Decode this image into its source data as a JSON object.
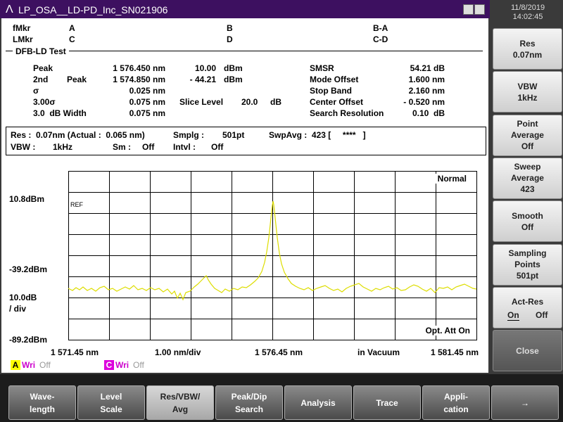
{
  "window": {
    "title": "LP_OSA__LD-PD_Inc_SN021906",
    "date": "11/8/2019",
    "time": "14:02:45"
  },
  "markers": {
    "rows": [
      [
        "fMkr",
        "A",
        "B",
        "B-A"
      ],
      [
        "LMkr",
        "C",
        "D",
        "C-D"
      ]
    ]
  },
  "test": {
    "title": "DFB-LD Test",
    "rows": [
      [
        "Peak",
        "1 576.450 nm",
        "10.00",
        "dBm",
        "SMSR",
        "54.21 dB"
      ],
      [
        "2nd",
        "Peak",
        "1 574.850 nm",
        "- 44.21",
        "dBm",
        "Mode Offset",
        "1.600 nm"
      ],
      [
        "σ",
        "0.025 nm",
        "Stop Band",
        "2.160 nm"
      ],
      [
        "3.00σ",
        "0.075 nm",
        "Slice Level",
        "20.0",
        "dB",
        "Center Offset",
        "- 0.520 nm"
      ],
      [
        "3.0  dB Width",
        "0.075 nm",
        "Search Resolution",
        "0.10  dB"
      ]
    ]
  },
  "settings": {
    "rows": [
      [
        "Res :  0.07nm (Actual :  0.065 nm)",
        "Smplg :",
        "501pt",
        "SwpAvg :  423 [     ****   ]"
      ],
      [
        "VBW :",
        "1kHz",
        "Sm :",
        "Off",
        "Intvl :",
        "Off"
      ]
    ]
  },
  "plot": {
    "mode": "Normal",
    "ref_label": "REF",
    "y_labels": [
      "10.8dBm",
      "-39.2dBm",
      "10.0dB",
      "/ div",
      "-89.2dBm"
    ],
    "x_labels": [
      "1 571.45 nm",
      "1.00 nm/div",
      "1 576.45 nm",
      "in Vacuum",
      "1 581.45 nm"
    ],
    "att": "Opt. Att On"
  },
  "traces": [
    {
      "id": "A",
      "mode": "Wri",
      "state": "Off"
    },
    {
      "id": "C",
      "mode": "Wri",
      "state": "Off"
    }
  ],
  "softkeys": [
    {
      "lines": [
        "Res",
        "0.07nm"
      ]
    },
    {
      "lines": [
        "VBW",
        "1kHz"
      ]
    },
    {
      "lines": [
        "Point",
        "Average",
        "Off"
      ]
    },
    {
      "lines": [
        "Sweep",
        "Average",
        "423"
      ]
    },
    {
      "lines": [
        "Smooth",
        "Off"
      ]
    },
    {
      "lines": [
        "Sampling",
        "Points",
        "501pt"
      ]
    },
    {
      "lines": [
        "Act-Res"
      ],
      "options": [
        "On",
        "Off"
      ]
    },
    {
      "lines": [
        "Close"
      ]
    }
  ],
  "functions": [
    [
      "Wave-",
      "length"
    ],
    [
      "Level",
      "Scale"
    ],
    [
      "Res/VBW/",
      "Avg"
    ],
    [
      "Peak/Dip",
      "Search"
    ],
    [
      "Analysis"
    ],
    [
      "Trace"
    ],
    [
      "Appli-",
      "cation"
    ],
    [
      "→"
    ]
  ]
}
